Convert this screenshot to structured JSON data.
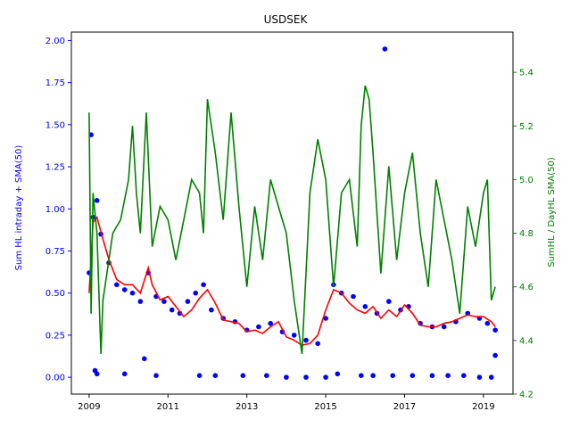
{
  "chart_data": {
    "type": "scatter",
    "title": "USDSEK",
    "xlabel": "",
    "ylabel_left": "Sum HL intraday + SMA(50)",
    "ylabel_right": "SumHL / DayHL SMA(50)",
    "xlim": [
      2008.55,
      2019.75
    ],
    "ylim_left": [
      -0.1,
      2.05
    ],
    "ylim_right": [
      4.2,
      5.55
    ],
    "x_ticks": [
      2009,
      2011,
      2013,
      2015,
      2017,
      2019
    ],
    "x_tick_labels": [
      "2009",
      "2011",
      "2013",
      "2015",
      "2017",
      "2019"
    ],
    "y_left_ticks": [
      0.0,
      0.25,
      0.5,
      0.75,
      1.0,
      1.25,
      1.5,
      1.75,
      2.0
    ],
    "y_left_tick_labels": [
      "0.00",
      "0.25",
      "0.50",
      "0.75",
      "1.00",
      "1.25",
      "1.50",
      "1.75",
      "2.00"
    ],
    "y_right_ticks": [
      4.2,
      4.4,
      4.6,
      4.8,
      5.0,
      5.2,
      5.4
    ],
    "y_right_tick_labels": [
      "4.2",
      "4.4",
      "4.6",
      "4.8",
      "5.0",
      "5.2",
      "5.4"
    ],
    "grid": false,
    "colors": {
      "scatter": "#0000ff",
      "sma_line": "#ff0000",
      "ratio_line": "#008000",
      "left_axis_text": "#0000ff",
      "right_axis_text": "#008000"
    },
    "series": [
      {
        "kind": "scatter",
        "axis": "left",
        "color": "#0000ff",
        "x": [
          2009.0,
          2009.1,
          2009.2,
          2009.3,
          2009.5,
          2009.7,
          2009.9,
          2010.1,
          2010.3,
          2010.5,
          2010.7,
          2010.9,
          2011.1,
          2011.3,
          2011.5,
          2011.7,
          2011.9,
          2012.1,
          2012.4,
          2012.7,
          2013.0,
          2013.3,
          2013.6,
          2013.9,
          2014.2,
          2014.5,
          2014.8,
          2015.0,
          2015.2,
          2015.4,
          2015.7,
          2016.0,
          2016.3,
          2016.6,
          2016.9,
          2017.1,
          2017.4,
          2017.7,
          2018.0,
          2018.3,
          2018.6,
          2018.9,
          2019.1,
          2019.3
        ],
        "y": [
          0.62,
          0.95,
          1.05,
          0.85,
          0.68,
          0.55,
          0.52,
          0.5,
          0.45,
          0.62,
          0.48,
          0.45,
          0.4,
          0.38,
          0.45,
          0.5,
          0.55,
          0.4,
          0.35,
          0.33,
          0.28,
          0.3,
          0.32,
          0.27,
          0.25,
          0.22,
          0.2,
          0.35,
          0.55,
          0.5,
          0.48,
          0.42,
          0.38,
          0.45,
          0.4,
          0.42,
          0.32,
          0.3,
          0.3,
          0.33,
          0.38,
          0.35,
          0.32,
          0.28
        ]
      },
      {
        "kind": "scatter",
        "axis": "left",
        "color": "#0000ff",
        "name": "",
        "x": [
          2009.15,
          2009.2,
          2009.05,
          2009.9,
          2010.4,
          2010.7,
          2011.8,
          2012.2,
          2012.9,
          2013.5,
          2014.0,
          2014.5,
          2015.0,
          2015.3,
          2015.9,
          2016.2,
          2016.5,
          2016.7,
          2017.2,
          2017.7,
          2018.1,
          2018.5,
          2018.9,
          2019.2,
          2019.3
        ],
        "y": [
          0.04,
          0.02,
          1.44,
          0.02,
          0.11,
          0.01,
          0.01,
          0.01,
          0.01,
          0.01,
          0.0,
          0.0,
          0.0,
          0.02,
          0.01,
          0.01,
          1.95,
          0.01,
          0.01,
          0.01,
          0.01,
          0.01,
          0.0,
          0.0,
          0.13
        ]
      },
      {
        "kind": "line",
        "axis": "left",
        "color": "#ff0000",
        "x": [
          2009.0,
          2009.1,
          2009.2,
          2009.35,
          2009.5,
          2009.7,
          2009.9,
          2010.1,
          2010.3,
          2010.5,
          2010.6,
          2010.8,
          2011.0,
          2011.2,
          2011.4,
          2011.6,
          2011.8,
          2012.0,
          2012.2,
          2012.4,
          2012.6,
          2012.8,
          2013.0,
          2013.2,
          2013.4,
          2013.6,
          2013.8,
          2014.0,
          2014.2,
          2014.4,
          2014.6,
          2014.8,
          2015.0,
          2015.2,
          2015.4,
          2015.6,
          2015.8,
          2016.0,
          2016.2,
          2016.4,
          2016.6,
          2016.8,
          2017.0,
          2017.2,
          2017.4,
          2017.6,
          2017.8,
          2018.0,
          2018.2,
          2018.4,
          2018.6,
          2018.8,
          2019.0,
          2019.2,
          2019.3
        ],
        "y": [
          0.5,
          0.92,
          0.95,
          0.82,
          0.7,
          0.58,
          0.55,
          0.55,
          0.5,
          0.65,
          0.55,
          0.46,
          0.48,
          0.42,
          0.36,
          0.4,
          0.47,
          0.52,
          0.44,
          0.34,
          0.33,
          0.32,
          0.27,
          0.28,
          0.26,
          0.3,
          0.33,
          0.24,
          0.22,
          0.19,
          0.2,
          0.25,
          0.4,
          0.52,
          0.5,
          0.44,
          0.4,
          0.38,
          0.42,
          0.35,
          0.4,
          0.36,
          0.43,
          0.38,
          0.31,
          0.3,
          0.3,
          0.32,
          0.33,
          0.35,
          0.37,
          0.36,
          0.36,
          0.33,
          0.3
        ]
      },
      {
        "kind": "line",
        "axis": "right",
        "color": "#008000",
        "x": [
          2009.0,
          2009.05,
          2009.1,
          2009.2,
          2009.3,
          2009.35,
          2009.5,
          2009.6,
          2009.8,
          2010.0,
          2010.1,
          2010.2,
          2010.3,
          2010.45,
          2010.6,
          2010.8,
          2011.0,
          2011.2,
          2011.4,
          2011.6,
          2011.8,
          2011.9,
          2012.0,
          2012.2,
          2012.4,
          2012.6,
          2012.8,
          2013.0,
          2013.2,
          2013.4,
          2013.6,
          2013.8,
          2014.0,
          2014.2,
          2014.4,
          2014.6,
          2014.8,
          2015.0,
          2015.2,
          2015.4,
          2015.6,
          2015.8,
          2015.9,
          2016.0,
          2016.1,
          2016.2,
          2016.4,
          2016.6,
          2016.8,
          2017.0,
          2017.2,
          2017.4,
          2017.6,
          2017.8,
          2018.0,
          2018.2,
          2018.4,
          2018.6,
          2018.8,
          2019.0,
          2019.1,
          2019.2,
          2019.3
        ],
        "y": [
          5.25,
          4.5,
          4.95,
          4.8,
          4.35,
          4.55,
          4.7,
          4.8,
          4.85,
          5.0,
          5.2,
          4.95,
          4.8,
          5.25,
          4.75,
          4.9,
          4.85,
          4.7,
          4.85,
          5.0,
          4.95,
          4.8,
          5.3,
          5.1,
          4.85,
          5.25,
          4.9,
          4.6,
          4.9,
          4.7,
          5.0,
          4.9,
          4.8,
          4.55,
          4.35,
          4.95,
          5.15,
          5.0,
          4.6,
          4.95,
          5.0,
          4.75,
          5.2,
          5.35,
          5.3,
          5.1,
          4.65,
          5.05,
          4.7,
          4.95,
          5.1,
          4.8,
          4.6,
          5.0,
          4.85,
          4.7,
          4.5,
          4.9,
          4.75,
          4.95,
          5.0,
          4.55,
          4.6
        ]
      }
    ]
  }
}
